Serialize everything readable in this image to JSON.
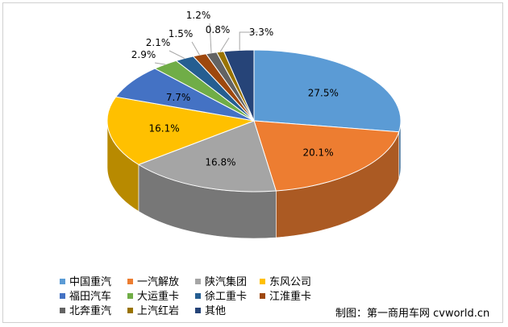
{
  "chart_data": {
    "type": "pie",
    "title": "",
    "style": "3d",
    "series": [
      {
        "name": "中国重汽",
        "value": 27.5,
        "label": "27.5%",
        "color": "#5B9BD5"
      },
      {
        "name": "一汽解放",
        "value": 20.1,
        "label": "20.1%",
        "color": "#ED7D31"
      },
      {
        "name": "陕汽集团",
        "value": 16.8,
        "label": "16.8%",
        "color": "#A5A5A5"
      },
      {
        "name": "东风公司",
        "value": 16.1,
        "label": "16.1%",
        "color": "#FFC000"
      },
      {
        "name": "福田汽车",
        "value": 7.7,
        "label": "7.7%",
        "color": "#4472C4"
      },
      {
        "name": "大运重卡",
        "value": 2.9,
        "label": "2.9%",
        "color": "#70AD47"
      },
      {
        "name": "徐工重卡",
        "value": 2.1,
        "label": "2.1%",
        "color": "#255E91"
      },
      {
        "name": "江淮重卡",
        "value": 1.5,
        "label": "1.5%",
        "color": "#9E480E"
      },
      {
        "name": "北奔重汽",
        "value": 1.2,
        "label": "1.2%",
        "color": "#636363"
      },
      {
        "name": "上汽红岩",
        "value": 0.8,
        "label": "0.8%",
        "color": "#997300"
      },
      {
        "name": "其他",
        "value": 3.3,
        "label": "3.3%",
        "color": "#264478"
      }
    ],
    "legend_position": "bottom-left"
  },
  "source_note": "制图：第一商用车网 cvworld.cn"
}
